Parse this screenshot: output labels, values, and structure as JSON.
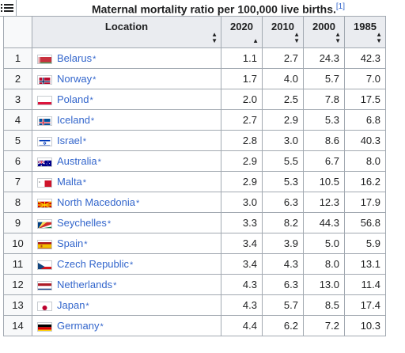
{
  "caption": {
    "title": "Maternal mortality ratio per 100,000 live births.",
    "ref": "[1]"
  },
  "columns": {
    "location": "Location",
    "y2020": "2020",
    "y2010": "2010",
    "y2000": "2000",
    "y1985": "1985"
  },
  "rows": [
    {
      "rank": "1",
      "name": "Belarus",
      "star": "*",
      "y2020": "1.1",
      "y2010": "2.7",
      "y2000": "24.3",
      "y1985": "42.3",
      "flag": "belarus"
    },
    {
      "rank": "2",
      "name": "Norway",
      "star": "*",
      "y2020": "1.7",
      "y2010": "4.0",
      "y2000": "5.7",
      "y1985": "7.0",
      "flag": "norway"
    },
    {
      "rank": "3",
      "name": "Poland",
      "star": "*",
      "y2020": "2.0",
      "y2010": "2.5",
      "y2000": "7.8",
      "y1985": "17.5",
      "flag": "poland"
    },
    {
      "rank": "4",
      "name": "Iceland",
      "star": "*",
      "y2020": "2.7",
      "y2010": "2.9",
      "y2000": "5.3",
      "y1985": "6.8",
      "flag": "iceland"
    },
    {
      "rank": "5",
      "name": "Israel",
      "star": "*",
      "y2020": "2.8",
      "y2010": "3.0",
      "y2000": "8.6",
      "y1985": "40.3",
      "flag": "israel"
    },
    {
      "rank": "6",
      "name": "Australia",
      "star": "*",
      "y2020": "2.9",
      "y2010": "5.5",
      "y2000": "6.7",
      "y1985": "8.0",
      "flag": "australia"
    },
    {
      "rank": "7",
      "name": "Malta",
      "star": "*",
      "y2020": "2.9",
      "y2010": "5.3",
      "y2000": "10.5",
      "y1985": "16.2",
      "flag": "malta"
    },
    {
      "rank": "8",
      "name": "North Macedonia",
      "star": "*",
      "y2020": "3.0",
      "y2010": "6.3",
      "y2000": "12.3",
      "y1985": "17.9",
      "flag": "north-macedonia"
    },
    {
      "rank": "9",
      "name": "Seychelles",
      "star": "*",
      "y2020": "3.3",
      "y2010": "8.2",
      "y2000": "44.3",
      "y1985": "56.8",
      "flag": "seychelles"
    },
    {
      "rank": "10",
      "name": "Spain",
      "star": "*",
      "y2020": "3.4",
      "y2010": "3.9",
      "y2000": "5.0",
      "y1985": "5.9",
      "flag": "spain"
    },
    {
      "rank": "11",
      "name": "Czech Republic",
      "star": "*",
      "y2020": "3.4",
      "y2010": "4.3",
      "y2000": "8.0",
      "y1985": "13.1",
      "flag": "czech-republic"
    },
    {
      "rank": "12",
      "name": "Netherlands",
      "star": "*",
      "y2020": "4.3",
      "y2010": "6.3",
      "y2000": "13.0",
      "y1985": "11.4",
      "flag": "netherlands"
    },
    {
      "rank": "13",
      "name": "Japan",
      "star": "*",
      "y2020": "4.3",
      "y2010": "5.7",
      "y2000": "8.5",
      "y1985": "17.4",
      "flag": "japan"
    },
    {
      "rank": "14",
      "name": "Germany",
      "star": "*",
      "y2020": "4.4",
      "y2010": "6.2",
      "y2000": "7.2",
      "y1985": "10.3",
      "flag": "germany"
    }
  ],
  "icons": {
    "toc": "list-icon",
    "sort": "sort-arrows-icon",
    "sorted_asc": "sort-ascending-icon"
  }
}
